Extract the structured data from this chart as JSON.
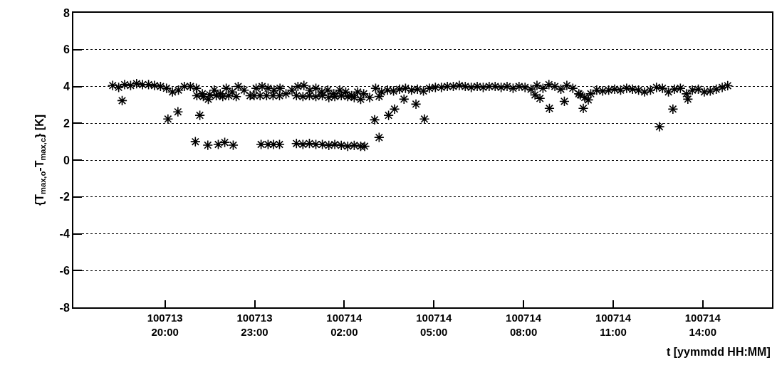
{
  "chart_data": {
    "type": "scatter",
    "xlabel": "t [yymmdd HH:MM]",
    "ylabel": "{T$_{max,o}$-T$_{max,c}$} [K]",
    "xlim": [
      "--07-13T16:56",
      "--07-14T16:19"
    ],
    "ylim": [
      -8,
      8
    ],
    "xticks": [
      {
        "value": "--07-13T20:00",
        "label": "100713\n20:00"
      },
      {
        "value": "--07-13T23:00",
        "label": "100713\n23:00"
      },
      {
        "value": "--07-14T02:00",
        "label": "100714\n02:00"
      },
      {
        "value": "--07-14T05:00",
        "label": "100714\n05:00"
      },
      {
        "value": "--07-14T08:00",
        "label": "100714\n08:00"
      },
      {
        "value": "--07-14T11:00",
        "label": "100714\n11:00"
      },
      {
        "value": "--07-14T14:00",
        "label": "100714\n14:00"
      }
    ],
    "yticks": [
      -8,
      -6,
      -4,
      -2,
      0,
      2,
      4,
      6,
      8
    ],
    "grid": "y",
    "marker": "cross",
    "series": [
      {
        "color": "#000000",
        "x": [
          "--07-13T18:15",
          "--07-13T18:27",
          "--07-13T18:39",
          "--07-13T18:51",
          "--07-13T19:03",
          "--07-13T19:15",
          "--07-13T19:27",
          "--07-13T19:39",
          "--07-13T19:51",
          "--07-13T20:03",
          "--07-13T20:15",
          "--07-13T20:27",
          "--07-13T20:39",
          "--07-13T20:51",
          "--07-13T21:03",
          "--07-13T21:15",
          "--07-13T21:27",
          "--07-13T21:39",
          "--07-13T21:51",
          "--07-13T22:03",
          "--07-13T22:15",
          "--07-13T22:27",
          "--07-13T22:39",
          "--07-13T22:51",
          "--07-13T23:03",
          "--07-13T23:15",
          "--07-13T23:27",
          "--07-13T23:39",
          "--07-13T23:51",
          "--07-14T00:03",
          "--07-14T00:15",
          "--07-14T00:27",
          "--07-14T00:39",
          "--07-14T00:51",
          "--07-14T01:03",
          "--07-14T01:15",
          "--07-14T01:27",
          "--07-14T01:39",
          "--07-14T01:51",
          "--07-14T02:03",
          "--07-14T02:15",
          "--07-14T02:27",
          "--07-14T02:39",
          "--07-14T02:51",
          "--07-14T03:03",
          "--07-14T03:15",
          "--07-14T03:27",
          "--07-14T03:39",
          "--07-14T03:51",
          "--07-14T04:03",
          "--07-14T04:15",
          "--07-14T04:27",
          "--07-14T04:39",
          "--07-14T04:51",
          "--07-14T05:03",
          "--07-14T05:15",
          "--07-14T05:27",
          "--07-14T05:39",
          "--07-14T05:51",
          "--07-14T06:03",
          "--07-14T06:15",
          "--07-14T06:27",
          "--07-14T06:39",
          "--07-14T06:51",
          "--07-14T07:03",
          "--07-14T07:15",
          "--07-14T07:27",
          "--07-14T07:39",
          "--07-14T07:51",
          "--07-14T08:03",
          "--07-14T08:15",
          "--07-14T08:27",
          "--07-14T08:39",
          "--07-14T08:51",
          "--07-14T09:03",
          "--07-14T09:15",
          "--07-14T09:27",
          "--07-14T09:39",
          "--07-14T09:51",
          "--07-14T10:03",
          "--07-14T10:15",
          "--07-14T10:27",
          "--07-14T10:39",
          "--07-14T10:51",
          "--07-14T11:03",
          "--07-14T11:15",
          "--07-14T11:27",
          "--07-14T11:39",
          "--07-14T11:51",
          "--07-14T12:03",
          "--07-14T12:15",
          "--07-14T12:27",
          "--07-14T12:39",
          "--07-14T12:51",
          "--07-14T13:03",
          "--07-14T13:15",
          "--07-14T13:27",
          "--07-14T13:39",
          "--07-14T13:51",
          "--07-14T14:03",
          "--07-14T14:15",
          "--07-14T14:27",
          "--07-14T14:39",
          "--07-13T21:04",
          "--07-13T21:17",
          "--07-13T21:30",
          "--07-13T21:43",
          "--07-13T21:56",
          "--07-13T22:08",
          "--07-13T22:23",
          "--07-13T22:59",
          "--07-13T23:11",
          "--07-13T23:24",
          "--07-13T23:37",
          "--07-13T23:50",
          "--07-14T00:24",
          "--07-14T00:37",
          "--07-14T00:50",
          "--07-14T01:03",
          "--07-14T01:16",
          "--07-14T01:29",
          "--07-14T01:41",
          "--07-14T01:54",
          "--07-14T02:07",
          "--07-14T02:20",
          "--07-14T02:33",
          "--07-14T03:10",
          "--07-13T18:34",
          "--07-13T20:06",
          "--07-13T20:26",
          "--07-13T21:10",
          "--07-13T21:01",
          "--07-13T21:26",
          "--07-13T21:47",
          "--07-13T22:00",
          "--07-13T22:17",
          "--07-13T23:13",
          "--07-13T23:27",
          "--07-13T23:38",
          "--07-13T23:50",
          "--07-14T00:24",
          "--07-14T00:37",
          "--07-14T00:50",
          "--07-14T01:03",
          "--07-14T01:16",
          "--07-14T01:29",
          "--07-14T01:41",
          "--07-14T01:54",
          "--07-14T02:07",
          "--07-14T02:20",
          "--07-14T02:33",
          "--07-14T02:41",
          "--07-14T03:01",
          "--07-14T03:10",
          "--07-14T03:29",
          "--07-14T03:41",
          "--07-14T04:00",
          "--07-14T04:24",
          "--07-14T04:41",
          "--07-14T08:23",
          "--07-14T08:33",
          "--07-14T08:52",
          "--07-14T09:22",
          "--07-14T09:54",
          "--07-14T10:00",
          "--07-14T10:10",
          "--07-14T12:33",
          "--07-14T13:00",
          "--07-14T13:30",
          "--07-14T14:50"
        ],
        "values": [
          4.05,
          3.95,
          4.1,
          4.05,
          4.15,
          4.1,
          4.1,
          4.05,
          4.0,
          3.9,
          3.7,
          3.8,
          4.0,
          4.0,
          3.9,
          3.6,
          3.3,
          3.8,
          3.6,
          3.9,
          3.7,
          4.0,
          3.8,
          3.5,
          3.9,
          4.0,
          3.9,
          3.8,
          3.9,
          3.6,
          3.8,
          4.0,
          4.05,
          3.8,
          3.9,
          3.7,
          3.8,
          3.6,
          3.8,
          3.7,
          3.5,
          3.7,
          3.6,
          3.4,
          3.9,
          3.7,
          3.8,
          3.75,
          3.85,
          3.9,
          3.8,
          3.85,
          3.75,
          3.9,
          3.95,
          3.95,
          4.0,
          4.0,
          4.05,
          4.0,
          3.95,
          4.0,
          3.95,
          4.0,
          4.0,
          3.95,
          4.0,
          3.9,
          4.0,
          3.95,
          3.85,
          4.05,
          3.9,
          4.1,
          4.0,
          3.85,
          4.05,
          3.9,
          3.6,
          3.4,
          3.6,
          3.8,
          3.75,
          3.8,
          3.85,
          3.8,
          3.9,
          3.85,
          3.8,
          3.7,
          3.8,
          3.95,
          3.9,
          3.7,
          3.85,
          3.9,
          3.6,
          3.8,
          3.85,
          3.7,
          3.75,
          3.85,
          3.95,
          3.5,
          3.45,
          3.55,
          3.5,
          3.45,
          3.5,
          3.45,
          3.5,
          3.5,
          3.5,
          3.5,
          3.5,
          3.5,
          3.45,
          3.5,
          3.45,
          3.5,
          3.4,
          3.45,
          3.5,
          3.45,
          3.4,
          3.3,
          3.46,
          3.23,
          2.23,
          2.62,
          2.43,
          1.0,
          0.81,
          0.85,
          0.96,
          0.81,
          0.85,
          0.85,
          0.85,
          0.85,
          0.9,
          0.85,
          0.9,
          0.85,
          0.85,
          0.8,
          0.85,
          0.8,
          0.75,
          0.8,
          0.75,
          0.75,
          2.19,
          1.23,
          2.43,
          2.77,
          3.31,
          3.04,
          2.23,
          3.54,
          3.35,
          2.81,
          3.19,
          3.54,
          2.81,
          3.27,
          1.81,
          2.77,
          3.31,
          4.04
        ]
      }
    ]
  }
}
